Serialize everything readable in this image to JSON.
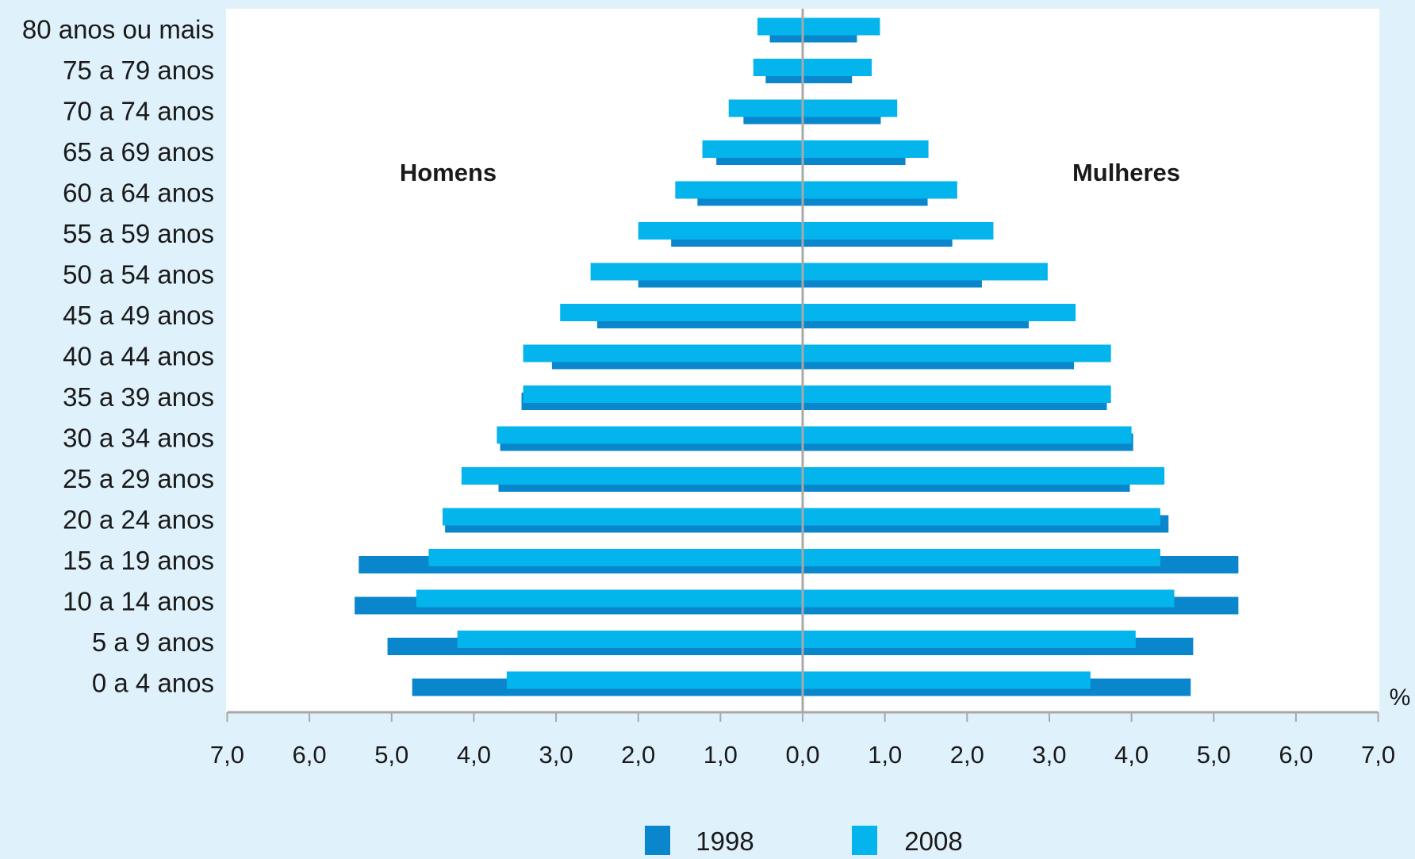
{
  "chart_data": {
    "type": "bar",
    "orientation": "horizontal",
    "layout": "population-pyramid",
    "categories": [
      "0 a 4 anos",
      "5 a 9 anos",
      "10 a 14 anos",
      "15 a 19 anos",
      "20 a 24 anos",
      "25 a 29 anos",
      "30 a 34 anos",
      "35 a 39 anos",
      "40 a 44 anos",
      "45 a 49 anos",
      "50 a 54 anos",
      "55 a 59 anos",
      "60 a 64 anos",
      "65 a 69 anos",
      "70 a 74 anos",
      "75 a 79 anos",
      "80 anos ou mais"
    ],
    "left_group_label": "Homens",
    "right_group_label": "Mulheres",
    "unit_label": "%",
    "xlim": [
      -7,
      7
    ],
    "x_ticks": [
      -7,
      -6,
      -5,
      -4,
      -3,
      -2,
      -1,
      0,
      1,
      2,
      3,
      4,
      5,
      6,
      7
    ],
    "x_tick_labels": [
      "7,0",
      "6,0",
      "5,0",
      "4,0",
      "3,0",
      "2,0",
      "1,0",
      "0,0",
      "1,0",
      "2,0",
      "3,0",
      "4,0",
      "5,0",
      "6,0",
      "7,0"
    ],
    "series": [
      {
        "name": "1998",
        "color": "#0a86cc",
        "homens": [
          4.75,
          5.05,
          5.45,
          5.4,
          4.35,
          3.7,
          3.68,
          3.42,
          3.05,
          2.5,
          2.0,
          1.6,
          1.28,
          1.05,
          0.72,
          0.45,
          0.4
        ],
        "mulheres": [
          4.72,
          4.75,
          5.3,
          5.3,
          4.45,
          3.98,
          4.02,
          3.7,
          3.3,
          2.75,
          2.18,
          1.82,
          1.52,
          1.25,
          0.95,
          0.6,
          0.66
        ]
      },
      {
        "name": "2008",
        "color": "#04b4ec",
        "homens": [
          3.6,
          4.2,
          4.7,
          4.55,
          4.38,
          4.15,
          3.72,
          3.4,
          3.4,
          2.95,
          2.58,
          2.0,
          1.55,
          1.22,
          0.9,
          0.6,
          0.55
        ],
        "mulheres": [
          3.5,
          4.05,
          4.52,
          4.35,
          4.35,
          4.4,
          4.0,
          3.75,
          3.75,
          3.32,
          2.98,
          2.32,
          1.88,
          1.53,
          1.15,
          0.84,
          0.94
        ]
      }
    ],
    "legend": {
      "placement": "bottom-center",
      "entries": [
        "1998",
        "2008"
      ]
    },
    "colors": {
      "background": "#dff1fb",
      "plot_area": "#ffffff",
      "axis": "#a8a8a8",
      "text": "#1a1a1a"
    }
  }
}
